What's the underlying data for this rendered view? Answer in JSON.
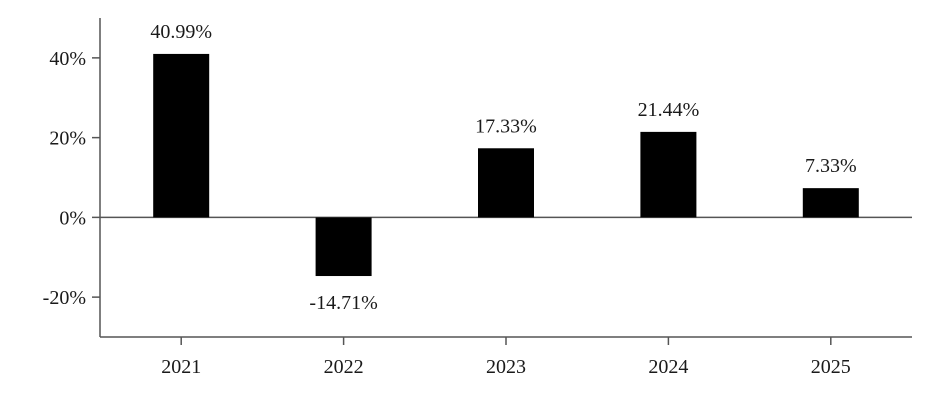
{
  "chart_data": {
    "type": "bar",
    "categories": [
      "2021",
      "2022",
      "2023",
      "2024",
      "2025"
    ],
    "values": [
      40.99,
      -14.71,
      17.33,
      21.44,
      7.33
    ],
    "data_labels": [
      "40.99%",
      "-14.71%",
      "17.33%",
      "21.44%",
      "7.33%"
    ],
    "y_ticks": [
      -20,
      0,
      20,
      40
    ],
    "y_tick_labels": [
      "-20%",
      "0%",
      "20%",
      "40%"
    ],
    "ylim": [
      -30,
      50
    ],
    "bar_color": "#000000",
    "grid": false,
    "legend": "none"
  }
}
